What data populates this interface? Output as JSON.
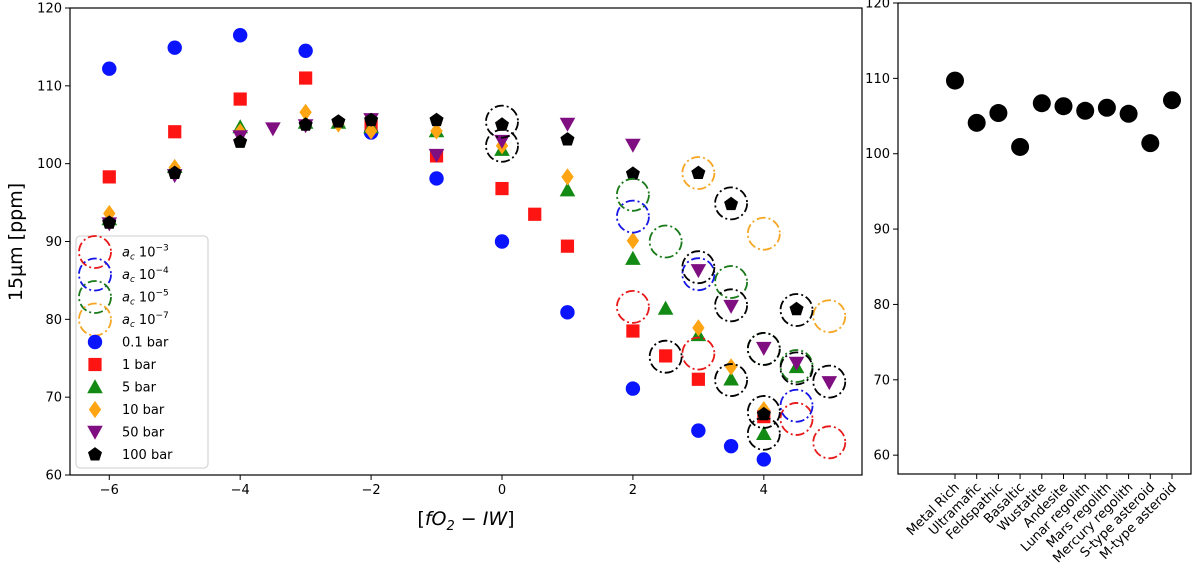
{
  "chart_data": [
    {
      "type": "scatter",
      "xlabel": "[fO2 − IW]",
      "ylabel": "15µm [ppm]",
      "xlim": [
        -6.6,
        5.5
      ],
      "ylim": [
        60,
        120
      ],
      "xticks": [
        -6,
        -4,
        -2,
        0,
        2,
        4
      ],
      "xtick_labels": [
        "−6",
        "−4",
        "−2",
        "0",
        "2",
        "4"
      ],
      "yticks": [
        60,
        70,
        80,
        90,
        100,
        110,
        120
      ],
      "legend": [
        {
          "label": "a_c 10^-3",
          "base": "a",
          "sub": "c",
          "mant": "10",
          "exp": "−3",
          "kind": "ring",
          "color": "#e8191a"
        },
        {
          "label": "a_c 10^-4",
          "base": "a",
          "sub": "c",
          "mant": "10",
          "exp": "−4",
          "kind": "ring",
          "color": "#1515e6"
        },
        {
          "label": "a_c 10^-5",
          "base": "a",
          "sub": "c",
          "mant": "10",
          "exp": "−5",
          "kind": "ring",
          "color": "#1a7a1a"
        },
        {
          "label": "a_c 10^-7",
          "base": "a",
          "sub": "c",
          "mant": "10",
          "exp": "−7",
          "kind": "ring",
          "color": "#f5a623"
        },
        {
          "label": "0.1 bar",
          "kind": "circle",
          "color": "#0a14ff"
        },
        {
          "label": "1 bar",
          "kind": "square",
          "color": "#ff1414"
        },
        {
          "label": "5 bar",
          "kind": "triangle-up",
          "color": "#138a13"
        },
        {
          "label": "10 bar",
          "kind": "diamond",
          "color": "#ffa514"
        },
        {
          "label": "50 bar",
          "kind": "triangle-down",
          "color": "#7f0f80"
        },
        {
          "label": "100 bar",
          "kind": "pentagon",
          "color": "#000000"
        }
      ],
      "series": [
        {
          "name": "0.1 bar",
          "marker": "circle",
          "color": "#0a14ff",
          "x": [
            -6,
            -5,
            -4,
            -3,
            -2,
            -1,
            0,
            1,
            2,
            3,
            3.5,
            4
          ],
          "y": [
            112.2,
            114.9,
            116.5,
            114.5,
            104,
            98.1,
            90,
            80.9,
            71.1,
            65.7,
            63.7,
            62
          ]
        },
        {
          "name": "1 bar",
          "marker": "square",
          "color": "#ff1414",
          "x": [
            -6,
            -5,
            -4,
            -3,
            -2,
            -1,
            0,
            0.5,
            1,
            2,
            2.5,
            3,
            4
          ],
          "y": [
            98.3,
            104.1,
            108.3,
            111,
            105,
            101,
            96.8,
            93.5,
            89.4,
            78.5,
            75.3,
            72.3,
            67.5
          ]
        },
        {
          "name": "5 bar",
          "marker": "triangle-up",
          "color": "#138a13",
          "x": [
            -6,
            -5,
            -4,
            -3,
            -2.5,
            -2,
            -1,
            0,
            1,
            2,
            2.5,
            3,
            3.5,
            4,
            4.5
          ],
          "y": [
            92.9,
            99.6,
            104.7,
            105.3,
            105.3,
            104.7,
            104.2,
            101.8,
            96.6,
            87.8,
            81.4,
            78,
            72.3,
            65.3,
            73.9
          ]
        },
        {
          "name": "10 bar",
          "marker": "diamond",
          "color": "#ffa514",
          "x": [
            -6,
            -5,
            -4,
            -3,
            -2.5,
            -2,
            -1,
            0,
            1,
            2,
            3,
            3.5,
            4
          ],
          "y": [
            93.6,
            99.5,
            104.1,
            106.6,
            105.1,
            104.2,
            104.2,
            102.3,
            98.3,
            90.1,
            78.9,
            73.9,
            68.4
          ]
        },
        {
          "name": "50 bar",
          "marker": "triangle-down",
          "color": "#7f0f80",
          "x": [
            -6,
            -5,
            -4,
            -3.5,
            -3,
            -2,
            -1,
            0,
            1,
            2,
            3,
            3.5,
            4,
            4.5,
            5
          ],
          "y": [
            92.3,
            98.5,
            103.5,
            104.5,
            104.9,
            105.7,
            101.1,
            102.9,
            105.1,
            102.4,
            86.3,
            81.7,
            76.3,
            74.4,
            71.9
          ]
        },
        {
          "name": "100 bar",
          "marker": "pentagon",
          "color": "#000000",
          "x": [
            -6,
            -5,
            -4,
            -3,
            -2.5,
            -2,
            -1,
            0,
            1,
            2,
            3,
            3.5,
            4,
            4.5
          ],
          "y": [
            92.4,
            98.8,
            102.8,
            105,
            105.4,
            105.6,
            105.6,
            105,
            103.1,
            98.7,
            98.8,
            94.8,
            67.8,
            81.3
          ]
        },
        {
          "name": "ring a_c 10^-3",
          "marker": "ring",
          "color": "#e8191a",
          "x": [
            2,
            3,
            4.5,
            5
          ],
          "y": [
            81.6,
            75.6,
            67.2,
            64.2
          ]
        },
        {
          "name": "ring a_c 10^-4",
          "marker": "ring",
          "color": "#1515e6",
          "x": [
            2,
            3,
            4.5
          ],
          "y": [
            93.2,
            85.8,
            68.9
          ]
        },
        {
          "name": "ring a_c 10^-5",
          "marker": "ring",
          "color": "#1a7a1a",
          "x": [
            2,
            2.5,
            3.5,
            4,
            4.5
          ],
          "y": [
            96,
            90,
            84.8,
            76.2,
            74
          ]
        },
        {
          "name": "ring a_c 10^-7",
          "marker": "ring",
          "color": "#f5a623",
          "x": [
            3,
            4,
            5
          ],
          "y": [
            98.8,
            91,
            80.4
          ]
        },
        {
          "name": "ring black",
          "marker": "ring",
          "color": "#000000",
          "x": [
            0,
            0,
            2.5,
            3,
            3.5,
            3.5,
            3.5,
            4,
            4,
            4,
            4.5,
            4.5,
            5
          ],
          "y": [
            105.4,
            102.3,
            75.2,
            86.7,
            94.9,
            81.8,
            72.2,
            76.2,
            68.1,
            65.3,
            81.2,
            73.7,
            72
          ]
        }
      ]
    },
    {
      "type": "scatter",
      "xlabel": "",
      "ylabel": "",
      "ylim": [
        57.5,
        120
      ],
      "yticks": [
        60,
        70,
        80,
        90,
        100,
        110,
        120
      ],
      "color": "#000000",
      "categories": [
        "Metal Rich",
        "Ultramafic",
        "Feldspathic",
        "Basaltic",
        "Wustatite",
        "Andesite",
        "Lunar regolith",
        "Mars regolith",
        "Mercury regolith",
        "S-type asteroid",
        "M-type asteroid"
      ],
      "values": [
        109.7,
        104.1,
        105.4,
        100.9,
        106.7,
        106.3,
        105.7,
        106.1,
        105.3,
        101.4,
        107.1
      ]
    }
  ]
}
